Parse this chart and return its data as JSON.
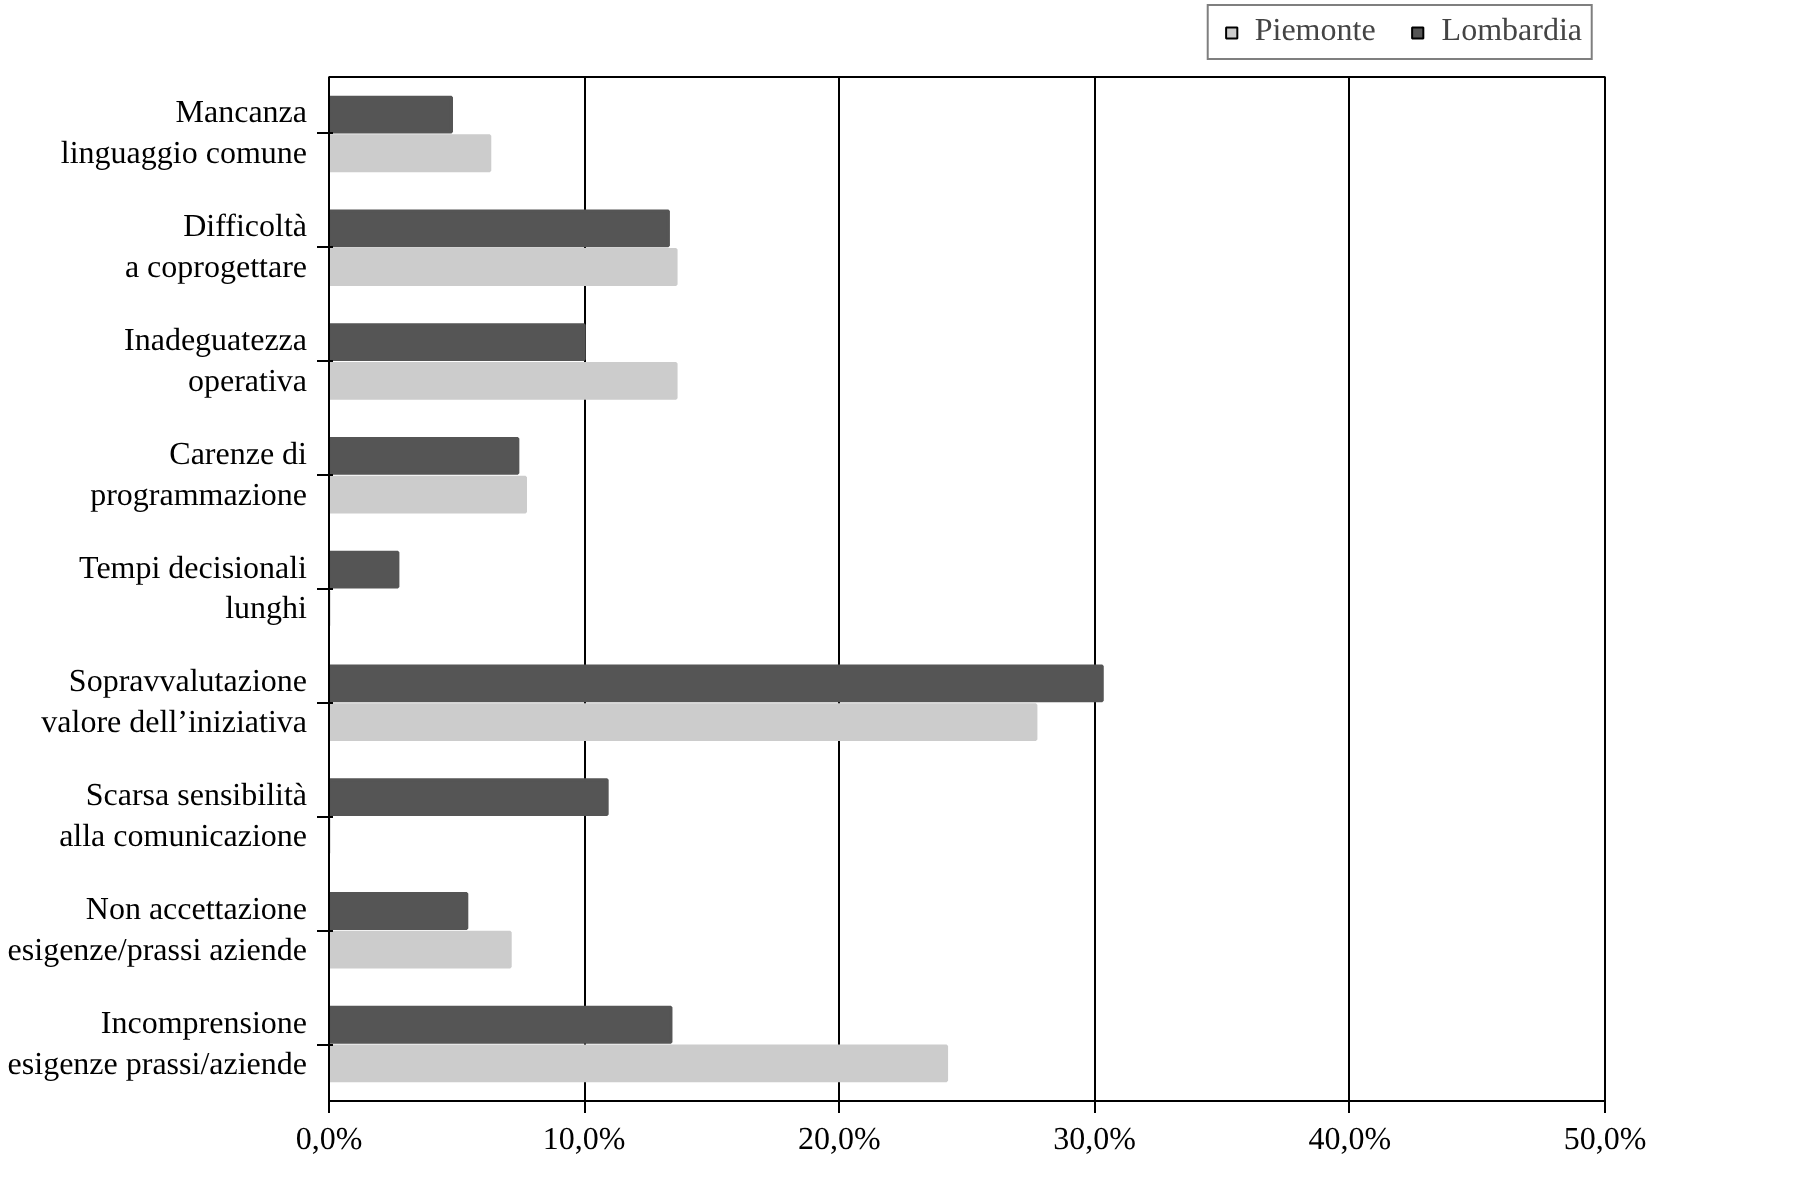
{
  "chart_data": {
    "type": "bar",
    "orientation": "horizontal",
    "categories": [
      "Mancanza\nlinguaggio comune",
      "Difficoltà\na coprogettare",
      "Inadeguatezza\noperativa",
      "Carenze di\nprogrammazione",
      "Tempi decisionali\nlunghi",
      "Sopravvalutazione\nvalore dell’iniziativa",
      "Scarsa sensibilità\nalla comunicazione",
      "Non accettazione\nesigenze/prassi aziende",
      "Incomprensione\nesigenze prassi/aziende"
    ],
    "series": [
      {
        "name": "Piemonte",
        "color": "#cccccc",
        "values": [
          6.3,
          13.6,
          13.6,
          7.7,
          0,
          27.7,
          0,
          7.1,
          24.2
        ]
      },
      {
        "name": "Lombardia",
        "color": "#555555",
        "values": [
          4.8,
          13.3,
          10.0,
          7.4,
          2.7,
          30.3,
          10.9,
          5.4,
          13.4
        ]
      }
    ],
    "xlim": [
      0,
      50
    ],
    "xticks": [
      {
        "value": 0,
        "label": "0,0%"
      },
      {
        "value": 10,
        "label": "10,0%"
      },
      {
        "value": 20,
        "label": "20,0%"
      },
      {
        "value": 30,
        "label": "30,0%"
      },
      {
        "value": 40,
        "label": "40,0%"
      },
      {
        "value": 50,
        "label": "50,0%"
      }
    ],
    "grid": "x",
    "legend": "top right"
  }
}
